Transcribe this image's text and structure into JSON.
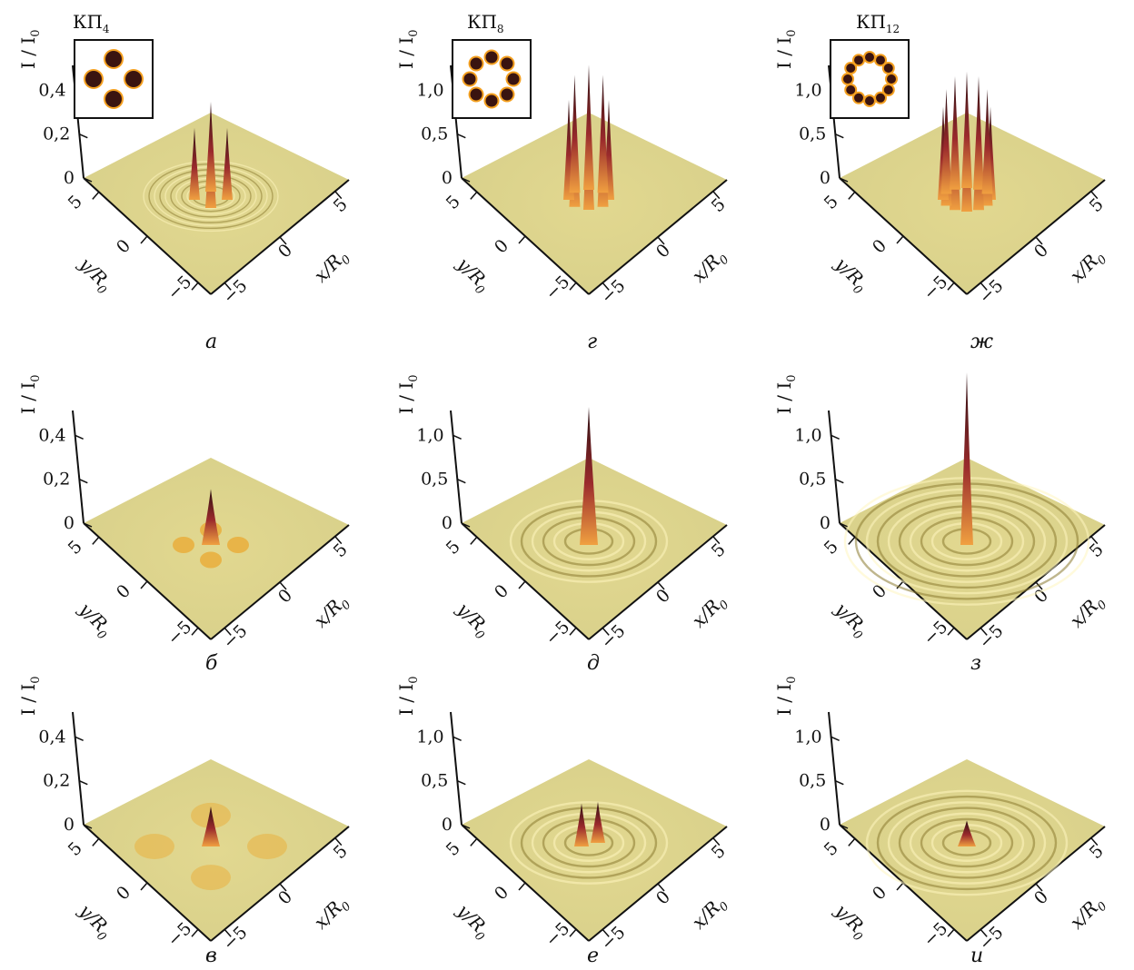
{
  "figure": {
    "y_axis_label": "I / I₀",
    "y_axis_label_main": "I / I",
    "y_axis_label_sub": "0",
    "x_axis_label": "x/R₀",
    "x_axis_label_main": "x/R",
    "x_axis_label_sub": "0",
    "depth_axis_label": "y/R₀",
    "depth_axis_label_main": "y/R",
    "depth_axis_label_sub": "0",
    "xy_ticks": [
      "5",
      "0",
      "−5"
    ],
    "colors": {
      "surface": "#d8d08a",
      "peak_dark": "#2a0f12",
      "peak_mid": "#9a2a2c",
      "peak_light": "#f0a040",
      "axis": "#111111"
    },
    "panels": [
      {
        "id": "a",
        "label": "а",
        "column_title_main": "КП",
        "column_title_sub": "4",
        "inset": "ring-of-4-spots",
        "z_ticks": [
          "0",
          "0,2",
          "0,4"
        ],
        "surface": "four-spike-peaks-with-fine-ripples",
        "peak_max": 0.45
      },
      {
        "id": "b",
        "label": "б",
        "z_ticks": [
          "0",
          "0,2",
          "0,4"
        ],
        "surface": "central-peak-with-four-side-lobes",
        "peak_max": 0.28
      },
      {
        "id": "c",
        "label": "в",
        "z_ticks": [
          "0",
          "0,2",
          "0,4"
        ],
        "surface": "central-peak-with-four-diffuse-lobes",
        "peak_max": 0.2
      },
      {
        "id": "d",
        "label": "г",
        "column_title_main": "КП",
        "column_title_sub": "8",
        "inset": "ring-of-8-spots",
        "z_ticks": [
          "0",
          "0,5",
          "1,0"
        ],
        "surface": "eight-tall-peaks",
        "peak_max": 1.45
      },
      {
        "id": "e",
        "label": "д",
        "z_ticks": [
          "0",
          "0,5",
          "1,0"
        ],
        "surface": "central-peak-with-ring-pattern",
        "peak_max": 1.6
      },
      {
        "id": "f",
        "label": "е",
        "z_ticks": [
          "0",
          "0,5",
          "1,0"
        ],
        "surface": "double-peak-with-rings",
        "peak_max": 0.5
      },
      {
        "id": "g",
        "label": "ж",
        "column_title_main": "КП",
        "column_title_sub": "12",
        "inset": "ring-of-12-spots",
        "z_ticks": [
          "0",
          "0,5",
          "1,0"
        ],
        "surface": "twelve-tall-peaks",
        "peak_max": 1.35
      },
      {
        "id": "h",
        "label": "з",
        "z_ticks": [
          "0",
          "0,5",
          "1,0"
        ],
        "surface": "single-tall-peak-with-fine-rings",
        "peak_max": 2.0
      },
      {
        "id": "i",
        "label": "и",
        "z_ticks": [
          "0",
          "0,5",
          "1,0"
        ],
        "surface": "small-peak-with-concentric-rings",
        "peak_max": 0.3
      }
    ]
  }
}
